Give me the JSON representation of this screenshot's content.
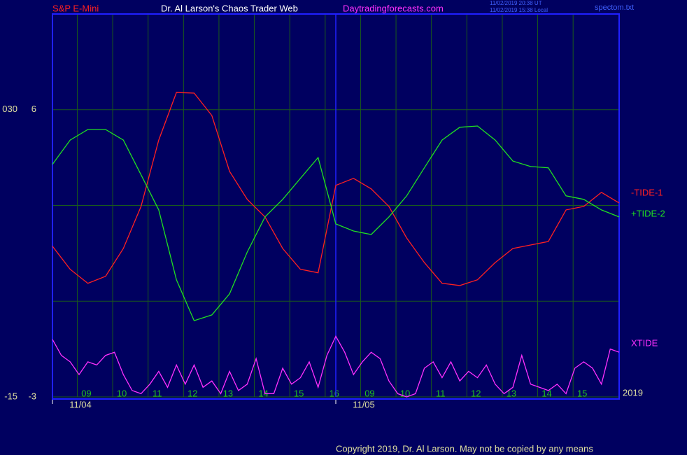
{
  "header": {
    "symbol": "S&P E-Mini",
    "site": "Dr. Al Larson's Chaos Trader Web",
    "url": "Daytradingforecasts.com",
    "time_ut": "11/02/2019 20:38 UT",
    "time_local": "11/02/2019 15:38 Local",
    "file": "spectom.txt"
  },
  "footer": {
    "copyright": "Copyright 2019, Dr. Al Larson. May not be copied by any means",
    "year": "2019"
  },
  "chart_data": {
    "type": "line",
    "xlim": [
      0,
      16
    ],
    "xticks": [
      {
        "value": 0.7,
        "label": "09"
      },
      {
        "value": 1.7,
        "label": "10"
      },
      {
        "value": 2.7,
        "label": "11"
      },
      {
        "value": 3.7,
        "label": "12"
      },
      {
        "value": 4.7,
        "label": "13"
      },
      {
        "value": 5.7,
        "label": "14"
      },
      {
        "value": 6.7,
        "label": "15"
      },
      {
        "value": 7.7,
        "label": "16"
      },
      {
        "value": 8.7,
        "label": "09"
      },
      {
        "value": 9.7,
        "label": "10"
      },
      {
        "value": 10.7,
        "label": "11"
      },
      {
        "value": 11.7,
        "label": "12"
      },
      {
        "value": 12.7,
        "label": "13"
      },
      {
        "value": 13.7,
        "label": "14"
      },
      {
        "value": 14.7,
        "label": "15"
      }
    ],
    "date_ticks": [
      {
        "value": 0,
        "label": "11/04"
      },
      {
        "value": 8,
        "label": "11/05"
      }
    ],
    "ylim": [
      -3,
      9
    ],
    "yticks": [
      6,
      3,
      0,
      -3
    ],
    "ytick_labels_shown": [
      6,
      -3
    ],
    "y2lim": [
      -15,
      45
    ],
    "y2ticks": [
      {
        "value": 30,
        "label": "030"
      },
      -15
    ],
    "grid": true,
    "series": [
      {
        "name": "-TIDE-1",
        "color": "#ff2020",
        "x": [
          0,
          0.5,
          1,
          1.5,
          2,
          2.5,
          3,
          3.5,
          4,
          4.5,
          5,
          5.5,
          6,
          6.5,
          7,
          7.5,
          8,
          8.5,
          9,
          9.5,
          10,
          10.5,
          11,
          11.5,
          12,
          12.5,
          13,
          13.5,
          14,
          14.5,
          15,
          15.5,
          16
        ],
        "values": [
          1.72,
          1.0,
          0.56,
          0.78,
          1.65,
          2.97,
          5.05,
          6.54,
          6.52,
          5.82,
          4.07,
          3.19,
          2.64,
          1.65,
          1.0,
          0.89,
          3.63,
          3.85,
          3.52,
          2.97,
          1.98,
          1.21,
          0.56,
          0.49,
          0.67,
          1.21,
          1.65,
          1.76,
          1.87,
          2.86,
          2.97,
          3.41,
          3.08
        ]
      },
      {
        "name": "+TIDE-2",
        "color": "#20e020",
        "x": [
          0,
          0.5,
          1,
          1.5,
          2,
          2.5,
          3,
          3.5,
          4,
          4.5,
          5,
          5.5,
          6,
          6.5,
          7,
          7.5,
          8,
          8.5,
          9,
          9.5,
          10,
          10.5,
          11,
          11.5,
          12,
          12.5,
          13,
          13.5,
          14,
          14.5,
          15,
          15.5,
          16
        ],
        "values": [
          4.29,
          5.05,
          5.38,
          5.38,
          5.05,
          3.96,
          2.86,
          0.67,
          -0.61,
          -0.43,
          0.23,
          1.54,
          2.64,
          3.19,
          3.85,
          4.5,
          2.42,
          2.2,
          2.09,
          2.64,
          3.3,
          4.18,
          5.05,
          5.45,
          5.49,
          5.05,
          4.39,
          4.22,
          4.18,
          3.3,
          3.19,
          2.86,
          2.64
        ]
      },
      {
        "name": "XTIDE",
        "color": "#ff30ff",
        "x": [
          0,
          0.25,
          0.5,
          0.75,
          1,
          1.25,
          1.5,
          1.75,
          2,
          2.25,
          2.5,
          2.75,
          3,
          3.25,
          3.5,
          3.75,
          4,
          4.25,
          4.5,
          4.75,
          5,
          5.25,
          5.5,
          5.75,
          6,
          6.25,
          6.5,
          6.75,
          7,
          7.25,
          7.5,
          7.75,
          8,
          8.25,
          8.5,
          8.75,
          9,
          9.25,
          9.5,
          9.75,
          10,
          10.25,
          10.5,
          10.75,
          11,
          11.25,
          11.5,
          11.75,
          12,
          12.25,
          12.5,
          12.75,
          13,
          13.25,
          13.5,
          13.75,
          14,
          14.25,
          14.5,
          14.75,
          15,
          15.25,
          15.5,
          15.75,
          16
        ],
        "values": [
          -1.2,
          -1.7,
          -1.9,
          -2.3,
          -1.9,
          -2.0,
          -1.7,
          -1.6,
          -2.3,
          -2.8,
          -2.9,
          -2.6,
          -2.2,
          -2.7,
          -2.0,
          -2.6,
          -2.0,
          -2.7,
          -2.5,
          -2.9,
          -2.2,
          -2.8,
          -2.6,
          -1.8,
          -2.9,
          -2.9,
          -2.1,
          -2.6,
          -2.4,
          -1.9,
          -2.7,
          -1.7,
          -1.1,
          -1.6,
          -2.3,
          -1.9,
          -1.6,
          -1.8,
          -2.5,
          -2.9,
          -3.0,
          -2.9,
          -2.1,
          -1.9,
          -2.4,
          -1.9,
          -2.5,
          -2.2,
          -2.4,
          -2.0,
          -2.6,
          -2.9,
          -2.7,
          -1.7,
          -2.6,
          -2.7,
          -2.8,
          -2.6,
          -2.9,
          -2.1,
          -1.9,
          -2.1,
          -2.6,
          -1.5,
          -1.6
        ]
      }
    ]
  }
}
